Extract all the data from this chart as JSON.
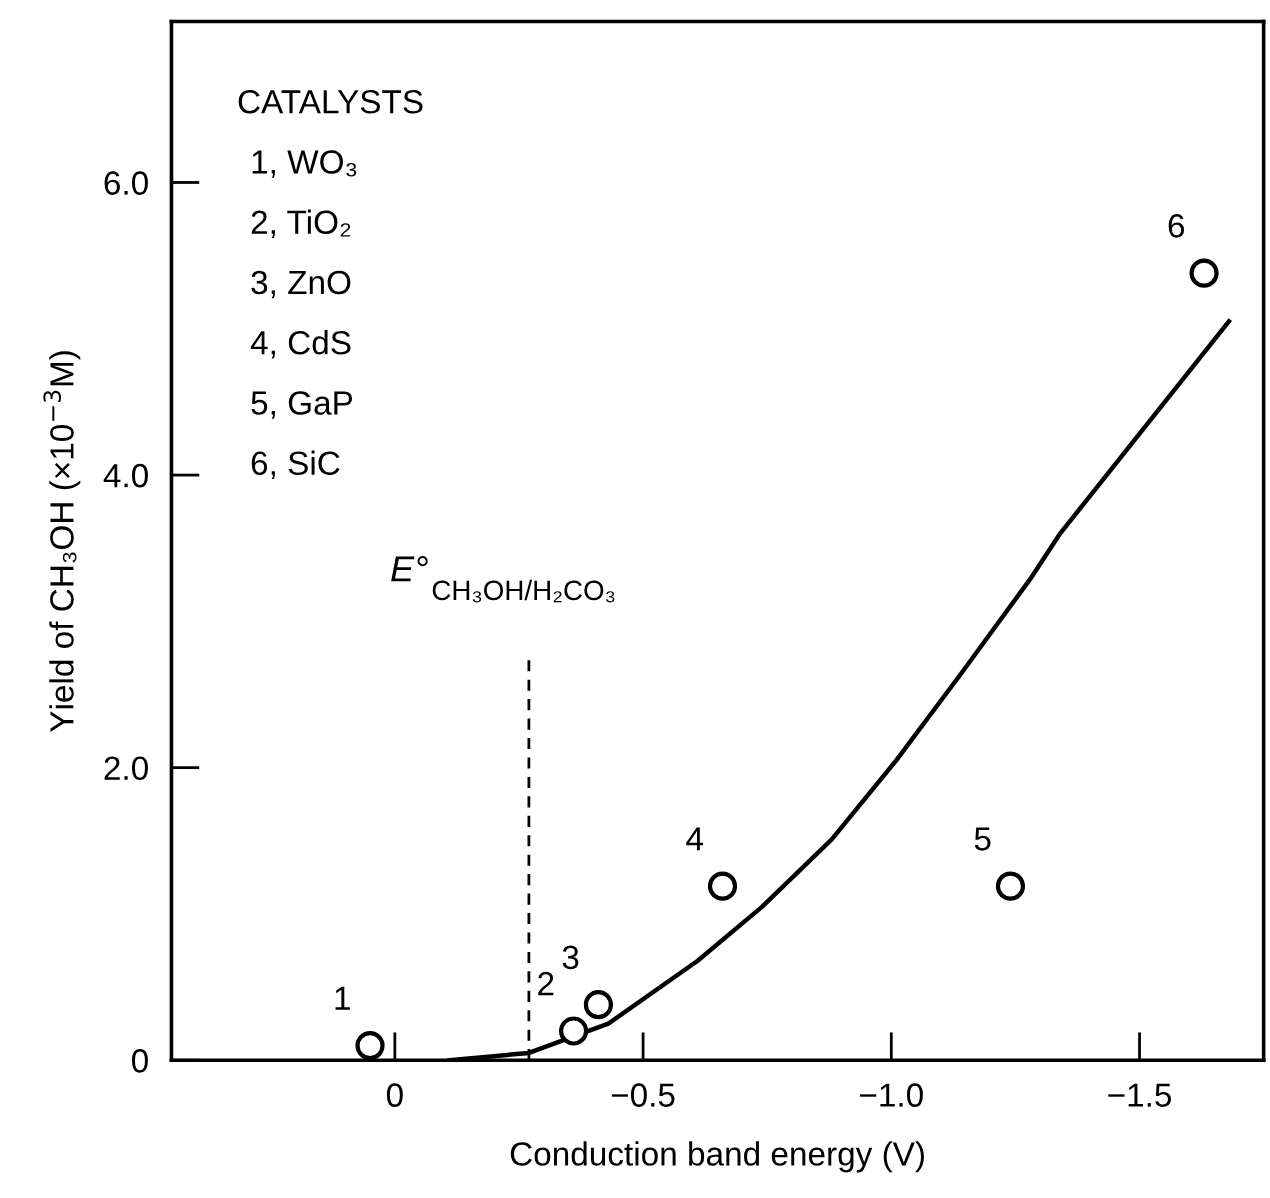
{
  "chart_data": {
    "type": "scatter",
    "xlabel": "Conduction band energy (V)",
    "ylabel": "Yield of CH₃OH (×10$^{−3}$M)",
    "xlim": [
      0.45,
      -1.75
    ],
    "ylim": [
      0,
      7.1
    ],
    "xticks": [
      0,
      {
        "value": -0.5,
        "label": "−0.5"
      },
      {
        "value": -1.0,
        "label": "−1.0"
      },
      {
        "value": -1.5,
        "label": "−1.5"
      }
    ],
    "yticks": [
      0,
      {
        "value": 2,
        "label": "2.0"
      },
      {
        "value": 4,
        "label": "4.0"
      },
      {
        "value": 6,
        "label": "6.0"
      }
    ],
    "grid": false,
    "legend": false,
    "series": [
      {
        "color": "#000000",
        "marker": "circle",
        "x": [
          0.05,
          -0.36,
          -0.41,
          -0.66,
          -1.24,
          -1.63
        ],
        "values": [
          0.1,
          0.2,
          0.38,
          1.19,
          1.19,
          5.38
        ]
      },
      {
        "type": "line",
        "color": "#000000",
        "marker": "none",
        "line_style": "solid",
        "x": [
          -0.11,
          -0.27,
          -0.43,
          -0.61,
          -0.74,
          -0.88,
          -1.01,
          -1.14,
          -1.28,
          -1.34,
          -1.68
        ],
        "values": [
          0,
          0.05,
          0.25,
          0.68,
          1.05,
          1.51,
          2.05,
          2.64,
          3.29,
          3.6,
          5.05
        ]
      },
      {
        "type": "line",
        "color": "#000000",
        "marker": "none",
        "line_style": "dashed",
        "x": [
          -0.27,
          -0.27
        ],
        "values": [
          0,
          2.78
        ]
      }
    ],
    "annotations": [
      "CATALYSTS",
      "1, WO₃",
      "2, TiO₂",
      "3, ZnO",
      "4, CdS",
      "5, GaP",
      "6, SiC",
      {
        "text": "E°$_{CH₃OH/H₂CO₃}$",
        "x": -0.27,
        "y": 2.78
      },
      {
        "text": "1",
        "x": 0.05,
        "y": 0.1
      },
      {
        "text": "2",
        "x": -0.36,
        "y": 0.2
      },
      {
        "text": "3",
        "x": -0.41,
        "y": 0.38
      },
      {
        "text": "4",
        "x": -0.66,
        "y": 1.19
      },
      {
        "text": "5",
        "x": -1.24,
        "y": 1.19
      },
      {
        "text": "6",
        "x": -1.63,
        "y": 5.38
      }
    ]
  }
}
